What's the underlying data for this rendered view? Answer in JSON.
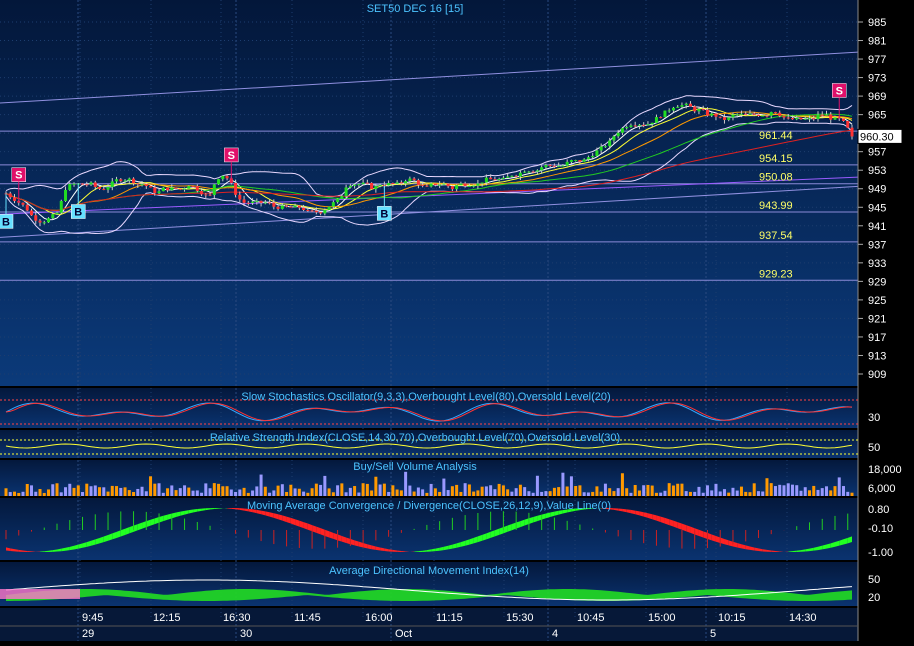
{
  "chart_data": [
    {
      "type": "candlestick",
      "title": "SET50 DEC 16   [15]",
      "price_axis": {
        "ticks": [
          985,
          981,
          977,
          973,
          969,
          965,
          961,
          957,
          953,
          949,
          945,
          941,
          937,
          933,
          929,
          925,
          921,
          917,
          913,
          909
        ],
        "range": [
          905,
          989
        ]
      },
      "last_price": "960.30",
      "horizontal_levels": [
        {
          "label": "961.44",
          "value": 961.44
        },
        {
          "label": "954.15",
          "value": 954.15
        },
        {
          "label": "950.08",
          "value": 950.08
        },
        {
          "label": "943.99",
          "value": 943.99
        },
        {
          "label": "937.54",
          "value": 937.54
        },
        {
          "label": "929.23",
          "value": 929.23
        }
      ],
      "trend_lines": [
        {
          "from": 967.5,
          "to": 978.5
        },
        {
          "from": 938.5,
          "to": 949.5
        },
        {
          "from": 943.5,
          "to": 951.5
        }
      ],
      "close_values": [
        948,
        947,
        946,
        945,
        943,
        942,
        942,
        943,
        944,
        949,
        950,
        950,
        950,
        950,
        949,
        949,
        950,
        951,
        951,
        951,
        950,
        950,
        949,
        948,
        949,
        949,
        949,
        949,
        950,
        949,
        948,
        947,
        951,
        952,
        951,
        948,
        946,
        946,
        946,
        946,
        946,
        945,
        945,
        945,
        945,
        945,
        944,
        944,
        944,
        945,
        946,
        947,
        950,
        950,
        950,
        950,
        949,
        950,
        950,
        950,
        950,
        951,
        951,
        950,
        949,
        950,
        950,
        950,
        949,
        950,
        950,
        950,
        950,
        951,
        951,
        951,
        951,
        952,
        952,
        953,
        953,
        953,
        954,
        954,
        954,
        954,
        955,
        955,
        955,
        956,
        957,
        958,
        959,
        961,
        962,
        963,
        963,
        963,
        963,
        964,
        965,
        966,
        967,
        967,
        967,
        966,
        966,
        965,
        965,
        964,
        964,
        965,
        965,
        965,
        965,
        965,
        965,
        966,
        965,
        964,
        964,
        964,
        964,
        964,
        965,
        965,
        964,
        964,
        963,
        960
      ],
      "signals": [
        {
          "text": "B",
          "index": 0
        },
        {
          "text": "S",
          "index": 3
        },
        {
          "text": "B",
          "index": 17
        },
        {
          "text": "S",
          "index": 53
        },
        {
          "text": "B",
          "index": 89
        },
        {
          "text": "S",
          "index": 196
        }
      ]
    },
    {
      "type": "line",
      "title": "Slow Stochastics Oscillator(9,3,3),Overbought Level(80),Oversold Level(20)",
      "y_ticks": [
        30
      ],
      "overbought": 80,
      "oversold": 20
    },
    {
      "type": "line",
      "title": "Relative Strength Index(CLOSE,14,30,70),Overbought Level(70),Oversold Level(30)",
      "y_ticks": [
        50
      ],
      "overbought": 70,
      "oversold": 30
    },
    {
      "type": "bar",
      "title": "Buy/Sell Volume Analysis",
      "y_ticks": [
        "18,000",
        "6,000"
      ]
    },
    {
      "type": "area",
      "title": "Moving Average Convergence / Divergence(CLOSE,26,12,9),Value Line(0)",
      "y_ticks": [
        "0.80",
        "-0.10",
        "-1.00"
      ],
      "value_line": 0
    },
    {
      "type": "area",
      "title": "Average Directional Movement Index(14)",
      "y_ticks": [
        50,
        20
      ]
    }
  ],
  "time_axis": {
    "times": [
      "9:45",
      "12:15",
      "16:30",
      "11:45",
      "16:00",
      "11:15",
      "15:30",
      "10:45",
      "15:00",
      "10:15",
      "14:30"
    ],
    "dates": [
      "29",
      "30",
      "Oct",
      "4",
      "5"
    ]
  }
}
